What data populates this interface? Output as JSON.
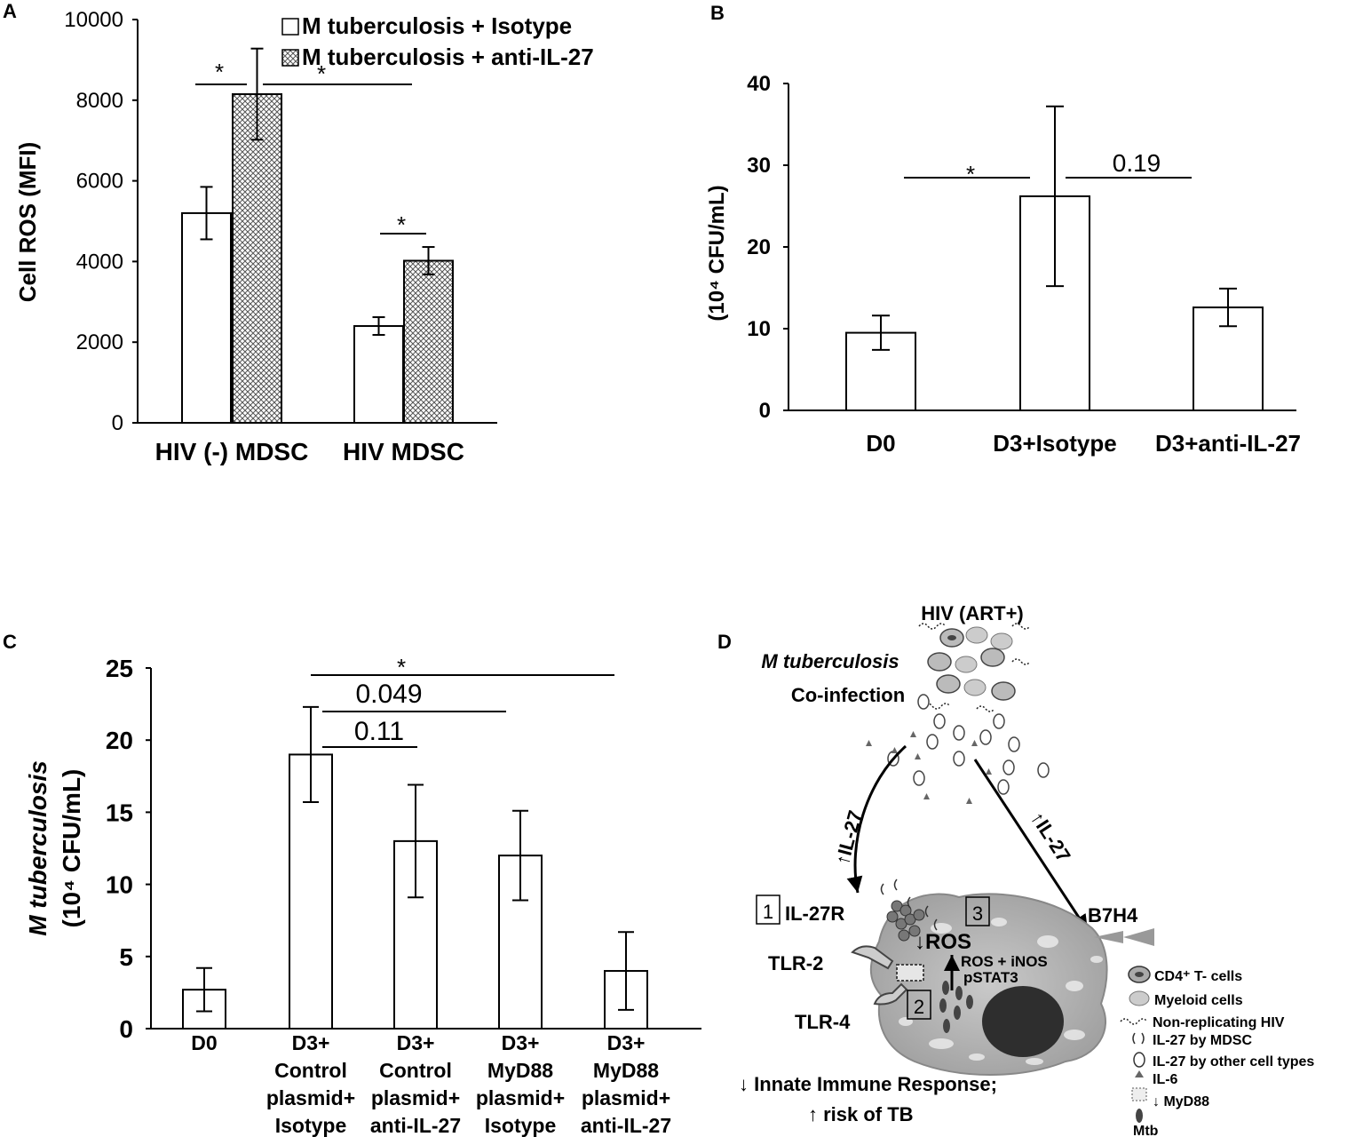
{
  "chart_data": [
    {
      "panel": "A",
      "type": "bar",
      "ylabel": "Cell ROS (MFI)",
      "ylim": [
        0,
        10000
      ],
      "yticks": [
        "0",
        "2000",
        "4000",
        "6000",
        "8000",
        "10000"
      ],
      "categories": [
        "HIV (-) MDSC",
        "HIV MDSC"
      ],
      "series": [
        {
          "name": "M tuberculosis + Isotype",
          "pattern": "open",
          "values": [
            5200,
            2400
          ],
          "errors": [
            650,
            220
          ]
        },
        {
          "name": "M tuberculosis + anti-IL-27",
          "pattern": "crosshatch",
          "values": [
            8150,
            4020
          ],
          "errors": [
            1130,
            340
          ]
        }
      ],
      "legend": "top-right",
      "annotations": [
        "*",
        "*",
        "*"
      ]
    },
    {
      "panel": "B",
      "type": "bar",
      "ylabel": "(10⁴ CFU/mL)",
      "ylim": [
        0,
        40
      ],
      "yticks": [
        "0",
        "10",
        "20",
        "30",
        "40"
      ],
      "categories": [
        "D0",
        "D3+Isotype",
        "D3+anti-IL-27"
      ],
      "values": [
        9.5,
        26.2,
        12.6
      ],
      "errors": [
        2.1,
        11.0,
        2.3
      ],
      "annotations": [
        "*",
        "0.19"
      ]
    },
    {
      "panel": "C",
      "type": "bar",
      "ylabel_line1": "M tuberculosis",
      "ylabel_line2": "(10⁴ CFU/mL)",
      "ylim": [
        0,
        25
      ],
      "yticks": [
        "0",
        "5",
        "10",
        "15",
        "20",
        "25"
      ],
      "categories": [
        [
          "D0"
        ],
        [
          "D3+",
          "Control",
          "plasmid+",
          "Isotype"
        ],
        [
          "D3+",
          "Control",
          "plasmid+",
          "anti-IL-27"
        ],
        [
          "D3+",
          "MyD88",
          "plasmid+",
          "Isotype"
        ],
        [
          "D3+",
          "MyD88",
          "plasmid+",
          "anti-IL-27"
        ]
      ],
      "values": [
        2.7,
        19.0,
        13.0,
        12.0,
        4.0
      ],
      "errors": [
        1.5,
        3.3,
        3.9,
        3.1,
        2.7
      ],
      "annotations": [
        "*",
        "0.049",
        "0.11"
      ]
    }
  ],
  "panels": {
    "a": "A",
    "b": "B",
    "c": "C",
    "d": "D"
  },
  "diagram": {
    "top_label": "HIV (ART+)",
    "coinfection_italic": "M tuberculosis",
    "coinfection": "Co-infection",
    "il27_left": "↑IL-27",
    "il27_right": "↑IL-27",
    "box1": "1",
    "box2": "2",
    "box3": "3",
    "il27r": "IL-27R",
    "tlr2": "TLR-2",
    "tlr4": "TLR-4",
    "ros_down": "↓ROS",
    "ros_inos": "ROS + iNOS",
    "pstat3": "pSTAT3",
    "b7h4": "B7H4",
    "bottom1": "↓ Innate Immune Response;",
    "bottom2": "↑ risk of TB",
    "legend": [
      {
        "text": "CD4⁺ T- cells",
        "icon": "cd4-cell-icon"
      },
      {
        "text": "Myeloid cells",
        "icon": "myeloid-cell-icon"
      },
      {
        "text": "Non-replicating HIV",
        "icon": "hiv-icon"
      },
      {
        "text": "IL-27 by MDSC",
        "icon": "il27-mdsc-icon"
      },
      {
        "text": "IL-27 by other cell types",
        "icon": "il27-other-icon"
      },
      {
        "text": "IL-6",
        "icon": "triangle-icon"
      },
      {
        "text": "↓ MyD88",
        "icon": "myd88-icon"
      },
      {
        "text": "Mtb",
        "icon": "mtb-icon"
      }
    ]
  }
}
